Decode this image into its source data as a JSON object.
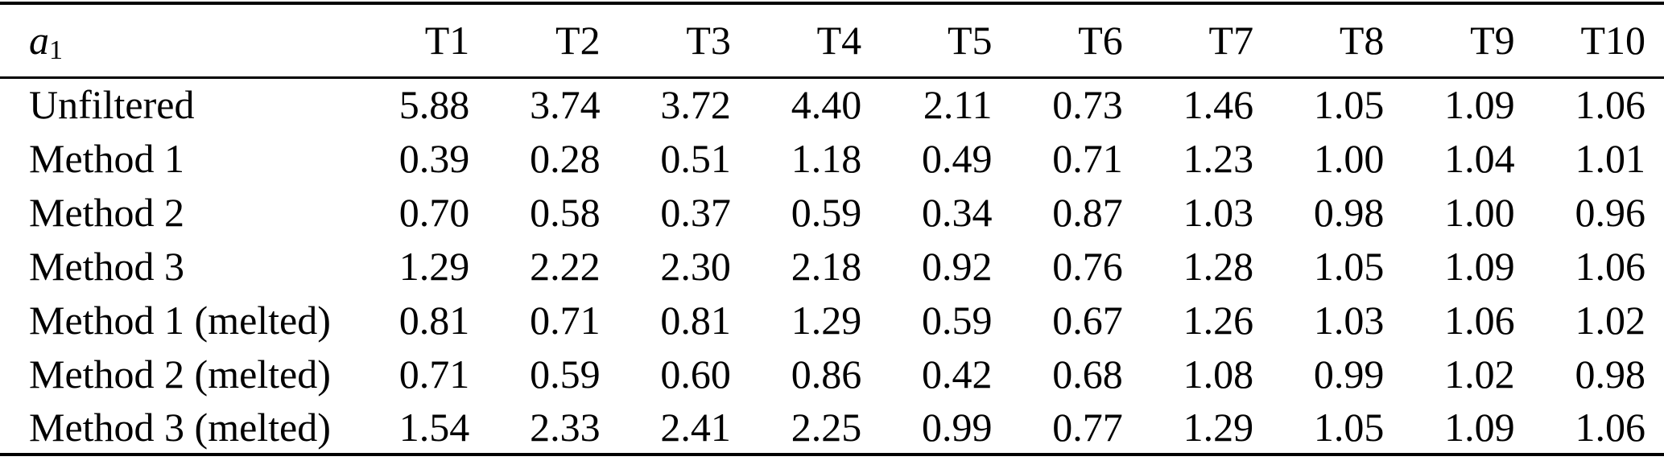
{
  "table": {
    "corner_label": {
      "base": "a",
      "sub": "1"
    },
    "columns": [
      "T1",
      "T2",
      "T3",
      "T4",
      "T5",
      "T6",
      "T7",
      "T8",
      "T9",
      "T10"
    ],
    "rows": [
      {
        "label": "Unfiltered",
        "values": [
          "5.88",
          "3.74",
          "3.72",
          "4.40",
          "2.11",
          "0.73",
          "1.46",
          "1.05",
          "1.09",
          "1.06"
        ]
      },
      {
        "label": "Method 1",
        "values": [
          "0.39",
          "0.28",
          "0.51",
          "1.18",
          "0.49",
          "0.71",
          "1.23",
          "1.00",
          "1.04",
          "1.01"
        ]
      },
      {
        "label": "Method 2",
        "values": [
          "0.70",
          "0.58",
          "0.37",
          "0.59",
          "0.34",
          "0.87",
          "1.03",
          "0.98",
          "1.00",
          "0.96"
        ]
      },
      {
        "label": "Method 3",
        "values": [
          "1.29",
          "2.22",
          "2.30",
          "2.18",
          "0.92",
          "0.76",
          "1.28",
          "1.05",
          "1.09",
          "1.06"
        ]
      },
      {
        "label": "Method 1 (melted)",
        "values": [
          "0.81",
          "0.71",
          "0.81",
          "1.29",
          "0.59",
          "0.67",
          "1.26",
          "1.03",
          "1.06",
          "1.02"
        ]
      },
      {
        "label": "Method 2 (melted)",
        "values": [
          "0.71",
          "0.59",
          "0.60",
          "0.86",
          "0.42",
          "0.68",
          "1.08",
          "0.99",
          "1.02",
          "0.98"
        ]
      },
      {
        "label": "Method 3 (melted)",
        "values": [
          "1.54",
          "2.33",
          "2.41",
          "2.25",
          "0.99",
          "0.77",
          "1.29",
          "1.05",
          "1.09",
          "1.06"
        ]
      }
    ]
  },
  "colors": {
    "background": "#ffffff",
    "text": "#000000",
    "rule": "#000000"
  }
}
